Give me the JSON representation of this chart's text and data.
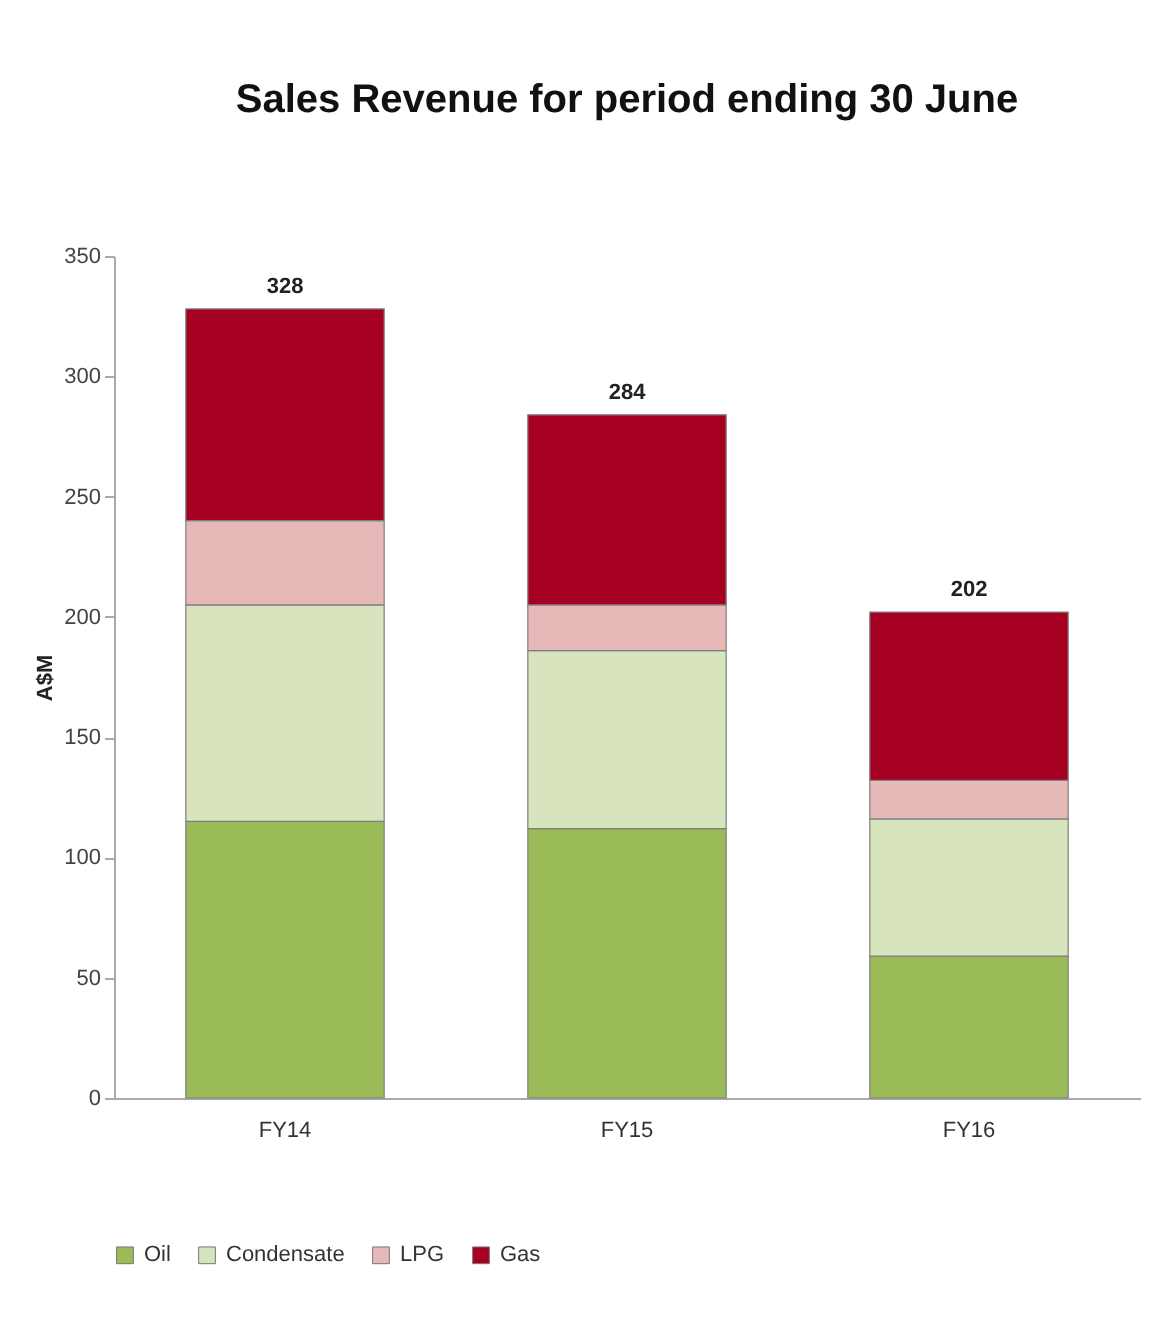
{
  "chart_data": {
    "type": "bar",
    "title": "Sales Revenue for period ending 30 June",
    "ylabel": "A$M",
    "categories": [
      "FY14",
      "FY15",
      "FY16"
    ],
    "stacked": true,
    "series": [
      {
        "name": "Oil",
        "color": "#9bbb59",
        "values": [
          115,
          112,
          59
        ]
      },
      {
        "name": "Condensate",
        "color": "#d7e4bd",
        "values": [
          90,
          74,
          57
        ]
      },
      {
        "name": "LPG",
        "color": "#e6b9b8",
        "values": [
          35,
          19,
          16
        ]
      },
      {
        "name": "Gas",
        "color": "#a50021",
        "values": [
          88,
          79,
          70
        ]
      }
    ],
    "totals": [
      "328",
      "284",
      "202"
    ],
    "ylim": [
      0,
      350
    ],
    "yticks": [
      0,
      50,
      100,
      150,
      200,
      250,
      300,
      350
    ],
    "grid": false,
    "legend": "bottom"
  }
}
